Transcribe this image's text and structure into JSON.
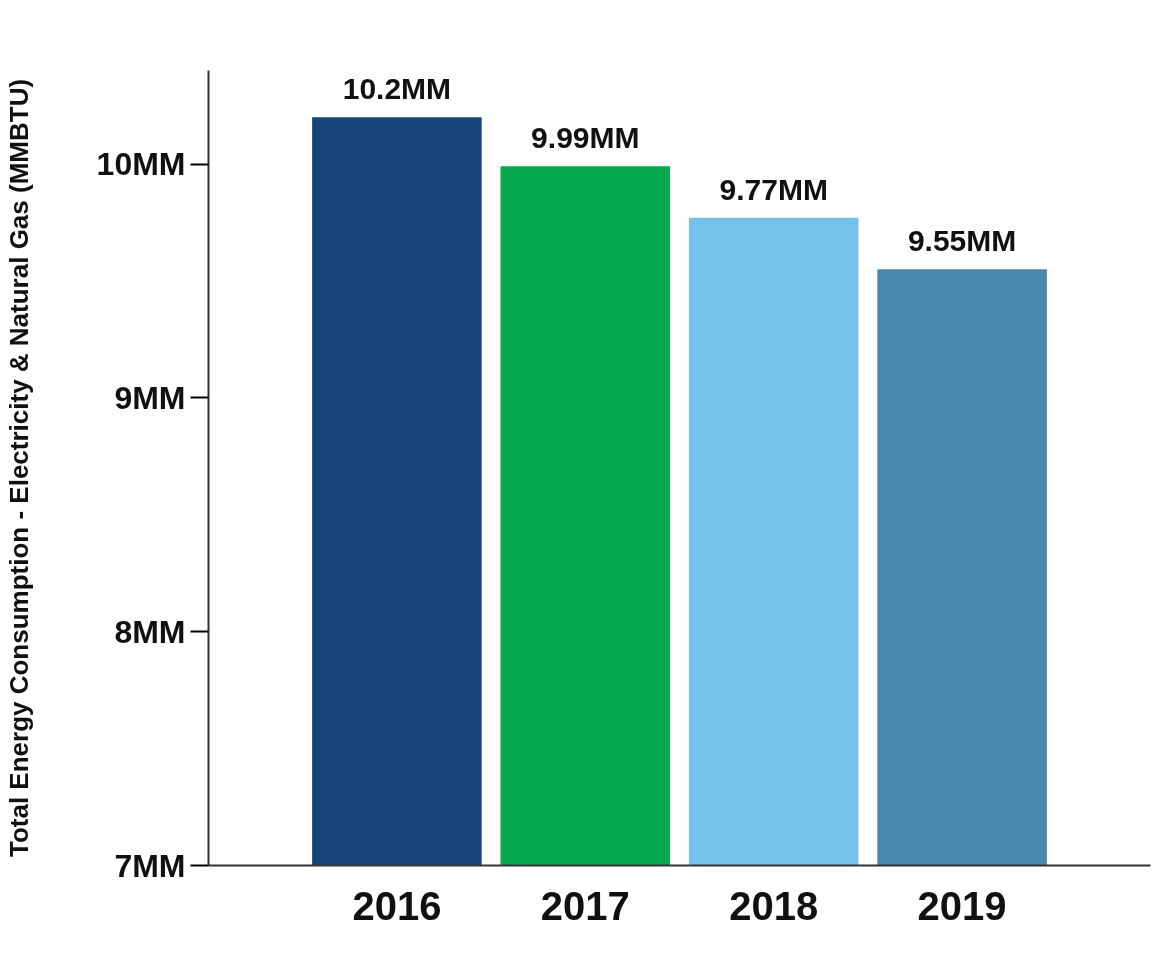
{
  "chart_data": {
    "type": "bar",
    "ylabel": "Total Energy Consumption - Electricity & Natural Gas (MMBTU)",
    "categories": [
      "2016",
      "2017",
      "2018",
      "2019"
    ],
    "values": [
      10.2,
      9.99,
      9.77,
      9.55
    ],
    "colors": [
      "#17477a",
      "#06a94d",
      "#74c2ea",
      "#4a87ad"
    ],
    "value_labels": [
      "10.2MM",
      "9.99MM",
      "9.77MM",
      "9.55MM"
    ],
    "ylim": [
      7,
      10.4
    ],
    "yticks": [
      {
        "value": 7,
        "label": "7MM"
      },
      {
        "value": 8,
        "label": "8MM"
      },
      {
        "value": 9,
        "label": "9MM"
      },
      {
        "value": 10,
        "label": "10MM"
      }
    ],
    "grid": false
  }
}
